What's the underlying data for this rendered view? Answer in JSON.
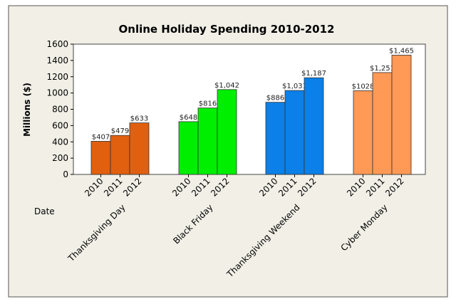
{
  "chart_data": {
    "type": "bar",
    "title": "Online Holiday Spending 2010-2012",
    "ylabel": "Millions ($)",
    "xlabel": "Date",
    "ylim": [
      0,
      1600
    ],
    "yticks": [
      0,
      200,
      400,
      600,
      800,
      1000,
      1200,
      1400,
      1600
    ],
    "grid": false,
    "categories": [
      "Thanksgiving Day",
      "Black Friday",
      "Thanksgiving Weekend",
      "Cyber Monday"
    ],
    "years": [
      "2010",
      "2011",
      "2012"
    ],
    "colors": [
      "#e06010",
      "#00ee00",
      "#0a80e8",
      "#ff9955"
    ],
    "groups": [
      {
        "name": "Thanksgiving Day",
        "values": [
          407,
          479,
          633
        ],
        "labels": [
          "$407",
          "$479",
          "$633"
        ]
      },
      {
        "name": "Black Friday",
        "values": [
          648,
          816,
          1042
        ],
        "labels": [
          "$648",
          "$816",
          "$1,042"
        ]
      },
      {
        "name": "Thanksgiving Weekend",
        "values": [
          886,
          1031,
          1187
        ],
        "labels": [
          "$886",
          "$1,031",
          "$1,187"
        ]
      },
      {
        "name": "Cyber Monday",
        "values": [
          1028,
          1251,
          1465
        ],
        "labels": [
          "$1028",
          "$1,251",
          "$1,465"
        ]
      }
    ]
  }
}
